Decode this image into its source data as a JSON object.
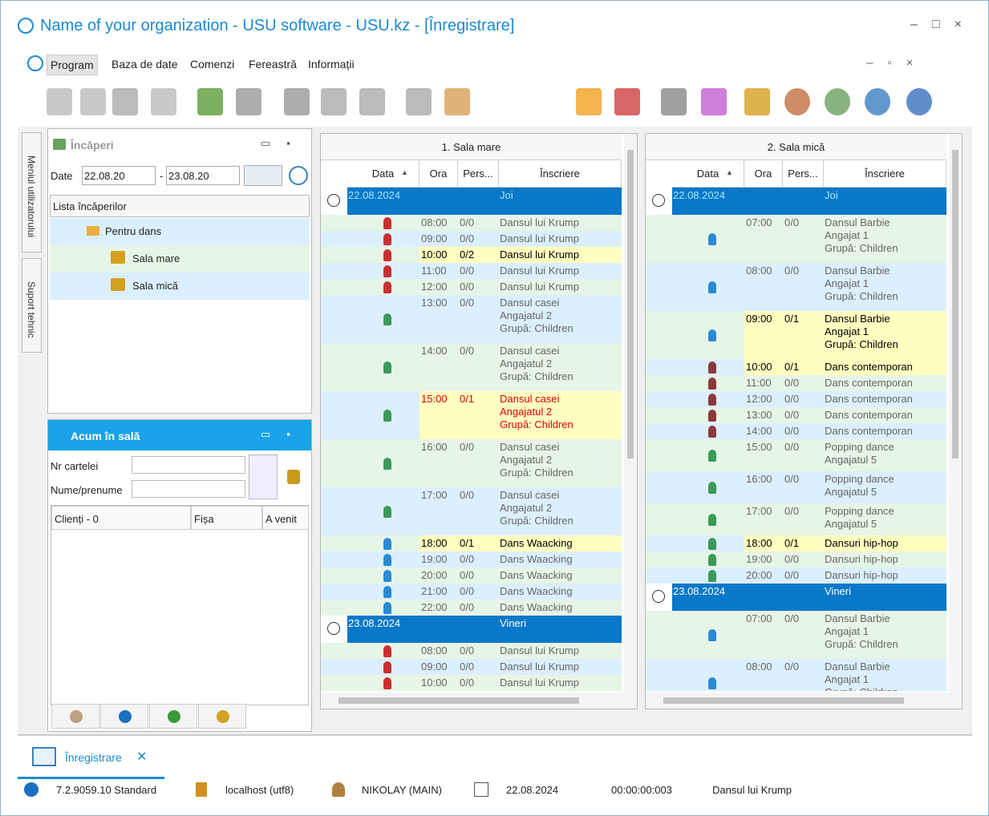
{
  "window": {
    "title": "Name of your organization - USU software - USU.kz - [Înregistrare]"
  },
  "menu": [
    "Program",
    "Baza de date",
    "Comenzi",
    "Fereastră",
    "Informații"
  ],
  "side_tabs": [
    "Meniul utilizatorului",
    "Suport tehnic"
  ],
  "rooms_panel": {
    "title": "Încăperi",
    "date_label": "Date",
    "date_from": "22.08.20",
    "date_separator": "-",
    "date_to": "23.08.20",
    "list_header": "Lista încăperilor",
    "tree": {
      "group": "Pentru dans",
      "rooms": [
        "Sala mare",
        "Sala mică"
      ]
    }
  },
  "now_panel": {
    "title": "Acum în sală",
    "fields": [
      "Nr cartelei",
      "Nume/prenume"
    ],
    "columns": [
      "Clienți - 0",
      "Fișa",
      "A venit"
    ]
  },
  "schedules": [
    {
      "title": "1. Sala mare",
      "columns": [
        "Data",
        "Ora",
        "Pers...",
        "Înscriere"
      ],
      "days": [
        {
          "date": "22.08.2024",
          "weekday": "Joi",
          "rows": [
            {
              "time": "08:00",
              "pers": "0/0",
              "lines": [
                "Dansul lui Krump"
              ]
            },
            {
              "time": "09:00",
              "pers": "0/0",
              "lines": [
                "Dansul lui Krump"
              ]
            },
            {
              "time": "10:00",
              "pers": "0/2",
              "lines": [
                "Dansul lui Krump"
              ],
              "highlight": true
            },
            {
              "time": "11:00",
              "pers": "0/0",
              "lines": [
                "Dansul lui Krump"
              ]
            },
            {
              "time": "12:00",
              "pers": "0/0",
              "lines": [
                "Dansul lui Krump"
              ]
            },
            {
              "time": "13:00",
              "pers": "0/0",
              "lines": [
                "Dansul casei",
                "Angajatul 2",
                "Grupă: Children"
              ]
            },
            {
              "time": "14:00",
              "pers": "0/0",
              "lines": [
                "Dansul casei",
                "Angajatul 2",
                "Grupă: Children"
              ]
            },
            {
              "time": "15:00",
              "pers": "0/1",
              "lines": [
                "Dansul casei",
                "Angajatul 2",
                "Grupă: Children"
              ],
              "highlight": true,
              "text_color": "#e00000"
            },
            {
              "time": "16:00",
              "pers": "0/0",
              "lines": [
                "Dansul casei",
                "Angajatul 2",
                "Grupă: Children"
              ]
            },
            {
              "time": "17:00",
              "pers": "0/0",
              "lines": [
                "Dansul casei",
                "Angajatul 2",
                "Grupă: Children"
              ]
            },
            {
              "time": "18:00",
              "pers": "0/1",
              "lines": [
                "Dans Waacking"
              ],
              "highlight": true
            },
            {
              "time": "19:00",
              "pers": "0/0",
              "lines": [
                "Dans Waacking"
              ]
            },
            {
              "time": "20:00",
              "pers": "0/0",
              "lines": [
                "Dans Waacking"
              ]
            },
            {
              "time": "21:00",
              "pers": "0/0",
              "lines": [
                "Dans Waacking"
              ]
            },
            {
              "time": "22:00",
              "pers": "0/0",
              "lines": [
                "Dans Waacking"
              ]
            }
          ]
        },
        {
          "date": "23.08.2024",
          "weekday": "Vineri",
          "rows": [
            {
              "time": "08:00",
              "pers": "0/0",
              "lines": [
                "Dansul lui Krump"
              ]
            },
            {
              "time": "09:00",
              "pers": "0/0",
              "lines": [
                "Dansul lui Krump"
              ]
            },
            {
              "time": "10:00",
              "pers": "0/0",
              "lines": [
                "Dansul lui Krump"
              ]
            }
          ]
        }
      ]
    },
    {
      "title": "2. Sala mică",
      "columns": [
        "Data",
        "Ora",
        "Pers...",
        "Înscriere"
      ],
      "days": [
        {
          "date": "22.08.2024",
          "weekday": "Joi",
          "rows": [
            {
              "time": "07:00",
              "pers": "0/0",
              "lines": [
                "Dansul Barbie",
                "Angajat 1",
                "Grupă: Children"
              ]
            },
            {
              "time": "08:00",
              "pers": "0/0",
              "lines": [
                "Dansul Barbie",
                "Angajat 1",
                "Grupă: Children"
              ]
            },
            {
              "time": "09:00",
              "pers": "0/1",
              "lines": [
                "Dansul Barbie",
                "Angajat 1",
                "Grupă: Children"
              ],
              "highlight": true
            },
            {
              "time": "10:00",
              "pers": "0/1",
              "lines": [
                "Dans contemporan"
              ],
              "highlight": true
            },
            {
              "time": "11:00",
              "pers": "0/0",
              "lines": [
                "Dans contemporan"
              ]
            },
            {
              "time": "12:00",
              "pers": "0/0",
              "lines": [
                "Dans contemporan"
              ]
            },
            {
              "time": "13:00",
              "pers": "0/0",
              "lines": [
                "Dans contemporan"
              ]
            },
            {
              "time": "14:00",
              "pers": "0/0",
              "lines": [
                "Dans contemporan"
              ]
            },
            {
              "time": "15:00",
              "pers": "0/0",
              "lines": [
                "Popping dance",
                "Angajatul 5"
              ]
            },
            {
              "time": "16:00",
              "pers": "0/0",
              "lines": [
                "Popping dance",
                "Angajatul 5"
              ]
            },
            {
              "time": "17:00",
              "pers": "0/0",
              "lines": [
                "Popping dance",
                "Angajatul 5"
              ]
            },
            {
              "time": "18:00",
              "pers": "0/1",
              "lines": [
                "Dansuri hip-hop"
              ],
              "highlight": true
            },
            {
              "time": "19:00",
              "pers": "0/0",
              "lines": [
                "Dansuri hip-hop"
              ]
            },
            {
              "time": "20:00",
              "pers": "0/0",
              "lines": [
                "Dansuri hip-hop"
              ]
            }
          ]
        },
        {
          "date": "23.08.2024",
          "weekday": "Vineri",
          "rows": [
            {
              "time": "07:00",
              "pers": "0/0",
              "lines": [
                "Dansul Barbie",
                "Angajat 1",
                "Grupă: Children"
              ]
            },
            {
              "time": "08:00",
              "pers": "0/0",
              "lines": [
                "Dansul Barbie",
                "Angajat 1",
                "Grupă: Children"
              ]
            }
          ]
        }
      ]
    }
  ],
  "tabs": [
    "Înregistrare"
  ],
  "status_bar": {
    "version": "7.2.9059.10 Standard",
    "database": "localhost (utf8)",
    "user": "NIKOLAY (MAIN)",
    "date": "22.08.2024",
    "elapsed": "00:00:00:003",
    "activity": "Dansul lui Krump"
  }
}
